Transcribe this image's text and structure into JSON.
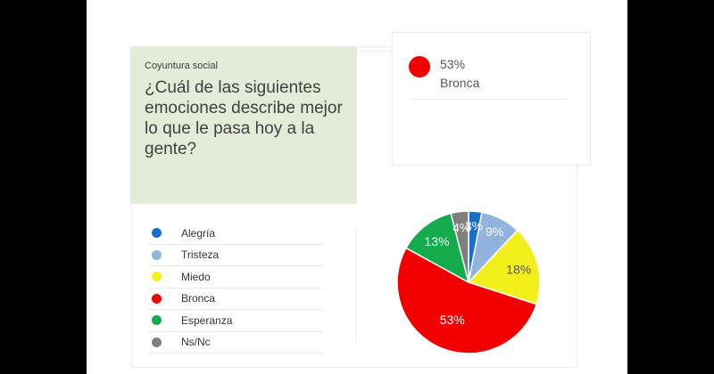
{
  "question": {
    "kicker": "Coyuntura social",
    "text": "¿Cuál de las siguientes emociones describe mejor lo que le pasa hoy a la gente?"
  },
  "tooltip": {
    "value": "53%",
    "label": "Bronca",
    "color": "#f20000"
  },
  "chart_data": {
    "type": "pie",
    "categories": [
      "Alegría",
      "Tristeza",
      "Miedo",
      "Bronca",
      "Esperanza",
      "Ns/Nc"
    ],
    "values": [
      3,
      9,
      18,
      53,
      13,
      4
    ],
    "labels": [
      "3%",
      "9%",
      "18%",
      "53%",
      "13%",
      "4%"
    ],
    "colors": [
      "#1a6dc8",
      "#92b3dd",
      "#f2ef1b",
      "#f20000",
      "#14ab4c",
      "#7f7f7f"
    ],
    "label_colors": [
      "#ffffff",
      "#ffffff",
      "#555555",
      "#ffffff",
      "#ffffff",
      "#ffffff"
    ],
    "legend_placement": "left"
  }
}
